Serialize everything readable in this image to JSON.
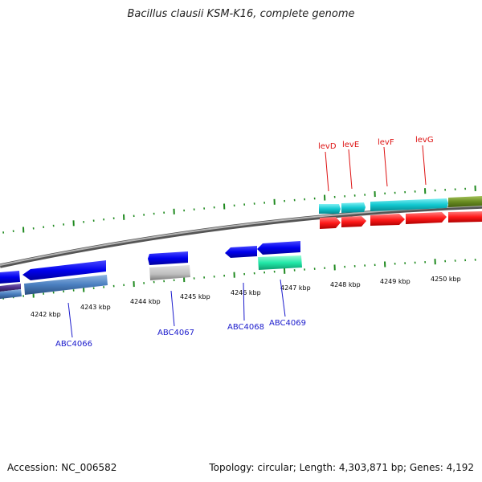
{
  "header": {
    "title": "Bacillus clausii KSM-K16, complete genome"
  },
  "footer": {
    "accession": "Accession: NC_006582",
    "topology": "Topology: circular; Length: 4,303,871 bp; Genes: 4,192"
  },
  "ruler": {
    "ticks": [
      "4242 kbp",
      "4243 kbp",
      "4244 kbp",
      "4245 kbp",
      "4246 kbp",
      "4247 kbp",
      "4248 kbp",
      "4249 kbp",
      "4250 kbp"
    ]
  },
  "genes": {
    "below": [
      "ABC4066",
      "ABC4067",
      "ABC4068",
      "ABC4069"
    ],
    "above": [
      "levD",
      "levE",
      "levF",
      "levG"
    ]
  },
  "colors": {
    "forward_gene": "#0000ee",
    "operon": "#12c8d0",
    "red_gene": "#ff1a1a",
    "green_gene": "#6a8c22",
    "steelblue_gene": "#4a7fbf",
    "gray_gene": "#bdbdbd",
    "mint_gene": "#22e8a8",
    "purple_gene": "#4c2f86",
    "tick_green": "#1f8a1f",
    "label_blue": "#1a1acc",
    "label_red": "#dd1111",
    "backbone": "#808080"
  }
}
